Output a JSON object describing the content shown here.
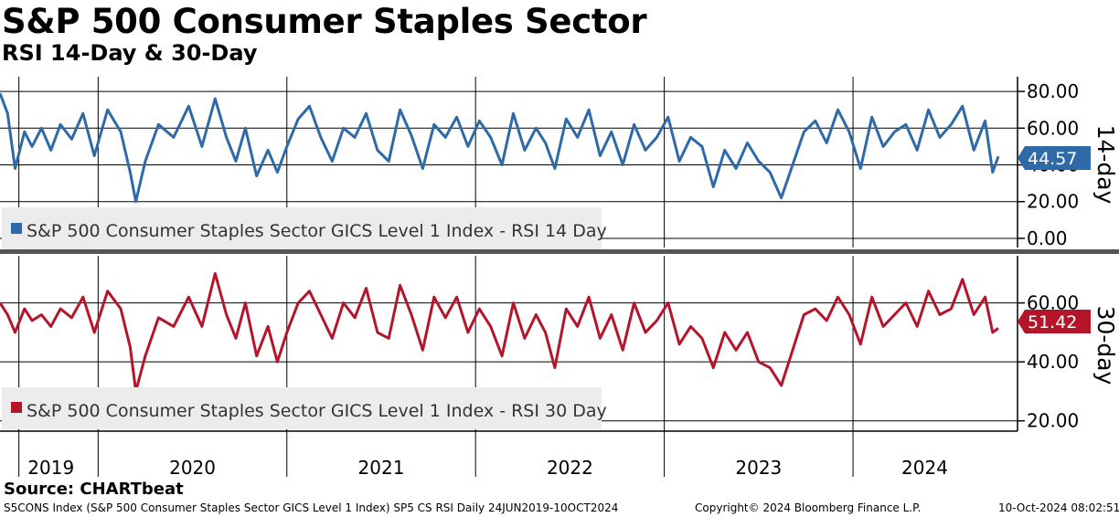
{
  "title": "S&P 500 Consumer Staples Sector",
  "subtitle": "RSI 14-Day & 30-Day",
  "source": "Source: CHARTbeat",
  "footer": {
    "left": "S5CONS Index (S&P 500 Consumer Staples Sector GICS Level 1 Index) SP5 CS RSI  Daily 24JUN2019-10OCT2024",
    "center": "Copyright© 2024 Bloomberg Finance L.P.",
    "right": "10-Oct-2024 08:02:51"
  },
  "colors": {
    "rsi14": "#2e6aa8",
    "rsi30": "#b5152b",
    "grid": "#000000",
    "legend_bg": "#ececec"
  },
  "chart_data": [
    {
      "type": "line",
      "panel": "top",
      "side_label": "14-day",
      "legend": "S&P 500 Consumer Staples Sector GICS Level 1 Index - RSI 14 Day",
      "last_value": "44.57",
      "ylim": [
        -5,
        88
      ],
      "ytick_labels": [
        "80.00",
        "60.00",
        "40.00",
        "20.00",
        "0.00"
      ],
      "yticks": [
        80,
        60,
        40,
        20,
        0
      ],
      "x_range": [
        2019.48,
        2024.77
      ],
      "x": [
        2019.48,
        2019.52,
        2019.56,
        2019.61,
        2019.65,
        2019.7,
        2019.75,
        2019.8,
        2019.86,
        2019.92,
        2019.98,
        2020.05,
        2020.12,
        2020.17,
        2020.2,
        2020.25,
        2020.32,
        2020.4,
        2020.48,
        2020.55,
        2020.62,
        2020.68,
        2020.73,
        2020.78,
        2020.84,
        2020.9,
        2020.95,
        2021.0,
        2021.06,
        2021.12,
        2021.18,
        2021.24,
        2021.3,
        2021.36,
        2021.42,
        2021.48,
        2021.54,
        2021.6,
        2021.66,
        2021.72,
        2021.78,
        2021.84,
        2021.9,
        2021.96,
        2022.02,
        2022.08,
        2022.14,
        2022.2,
        2022.26,
        2022.32,
        2022.37,
        2022.42,
        2022.48,
        2022.54,
        2022.6,
        2022.66,
        2022.72,
        2022.78,
        2022.84,
        2022.9,
        2022.96,
        2023.02,
        2023.08,
        2023.14,
        2023.2,
        2023.26,
        2023.32,
        2023.38,
        2023.44,
        2023.5,
        2023.56,
        2023.62,
        2023.68,
        2023.74,
        2023.8,
        2023.86,
        2023.92,
        2023.98,
        2024.04,
        2024.1,
        2024.16,
        2024.22,
        2024.28,
        2024.34,
        2024.4,
        2024.46,
        2024.52,
        2024.58,
        2024.64,
        2024.7,
        2024.74,
        2024.77
      ],
      "values": [
        79,
        68,
        38,
        58,
        50,
        60,
        48,
        62,
        54,
        68,
        45,
        70,
        58,
        36,
        20,
        42,
        62,
        55,
        72,
        50,
        76,
        55,
        42,
        60,
        34,
        48,
        36,
        50,
        65,
        72,
        55,
        42,
        60,
        55,
        68,
        48,
        42,
        70,
        56,
        38,
        62,
        55,
        66,
        50,
        64,
        55,
        40,
        68,
        48,
        60,
        52,
        38,
        65,
        55,
        70,
        45,
        58,
        40,
        62,
        48,
        55,
        66,
        42,
        55,
        50,
        28,
        48,
        38,
        52,
        42,
        36,
        22,
        40,
        58,
        64,
        52,
        70,
        58,
        38,
        66,
        50,
        58,
        62,
        48,
        70,
        55,
        62,
        72,
        48,
        64,
        36,
        44.57
      ]
    },
    {
      "type": "line",
      "panel": "bottom",
      "side_label": "30-day",
      "legend": "S&P 500 Consumer Staples Sector GICS Level 1 Index - RSI 30 Day",
      "last_value": "51.42",
      "ylim": [
        16.5,
        76
      ],
      "ytick_labels": [
        "60.00",
        "40.00",
        "20.00"
      ],
      "yticks": [
        60,
        40,
        20
      ],
      "x_range": [
        2019.48,
        2024.77
      ],
      "x": [
        2019.48,
        2019.52,
        2019.56,
        2019.61,
        2019.65,
        2019.7,
        2019.75,
        2019.8,
        2019.86,
        2019.92,
        2019.98,
        2020.05,
        2020.12,
        2020.17,
        2020.2,
        2020.25,
        2020.32,
        2020.4,
        2020.48,
        2020.55,
        2020.62,
        2020.68,
        2020.73,
        2020.78,
        2020.84,
        2020.9,
        2020.95,
        2021.0,
        2021.06,
        2021.12,
        2021.18,
        2021.24,
        2021.3,
        2021.36,
        2021.42,
        2021.48,
        2021.54,
        2021.6,
        2021.66,
        2021.72,
        2021.78,
        2021.84,
        2021.9,
        2021.96,
        2022.02,
        2022.08,
        2022.14,
        2022.2,
        2022.26,
        2022.32,
        2022.37,
        2022.42,
        2022.48,
        2022.54,
        2022.6,
        2022.66,
        2022.72,
        2022.78,
        2022.84,
        2022.9,
        2022.96,
        2023.02,
        2023.08,
        2023.14,
        2023.2,
        2023.26,
        2023.32,
        2023.38,
        2023.44,
        2023.5,
        2023.56,
        2023.62,
        2023.68,
        2023.74,
        2023.8,
        2023.86,
        2023.92,
        2023.98,
        2024.04,
        2024.1,
        2024.16,
        2024.22,
        2024.28,
        2024.34,
        2024.4,
        2024.46,
        2024.52,
        2024.58,
        2024.64,
        2024.7,
        2024.74,
        2024.77
      ],
      "values": [
        60,
        56,
        50,
        58,
        54,
        56,
        52,
        58,
        55,
        62,
        50,
        64,
        58,
        45,
        30,
        42,
        55,
        52,
        62,
        52,
        70,
        56,
        48,
        60,
        42,
        52,
        40,
        50,
        60,
        64,
        56,
        48,
        60,
        55,
        65,
        50,
        48,
        66,
        56,
        44,
        62,
        55,
        62,
        50,
        58,
        52,
        42,
        60,
        48,
        56,
        50,
        38,
        58,
        52,
        62,
        48,
        56,
        44,
        60,
        50,
        54,
        60,
        46,
        52,
        48,
        38,
        50,
        44,
        50,
        40,
        38,
        32,
        44,
        56,
        58,
        54,
        62,
        56,
        46,
        62,
        52,
        56,
        60,
        52,
        64,
        56,
        58,
        68,
        56,
        62,
        50,
        51.42
      ]
    }
  ],
  "x_axis": {
    "dividers": [
      2019.58,
      2020.0,
      2021.0,
      2022.0,
      2023.0,
      2024.0
    ],
    "labels": [
      {
        "text": "2019",
        "year": 2019.75
      },
      {
        "text": "2020",
        "year": 2020.5
      },
      {
        "text": "2021",
        "year": 2021.5
      },
      {
        "text": "2022",
        "year": 2022.5
      },
      {
        "text": "2023",
        "year": 2023.5
      },
      {
        "text": "2024",
        "year": 2024.38
      }
    ]
  }
}
